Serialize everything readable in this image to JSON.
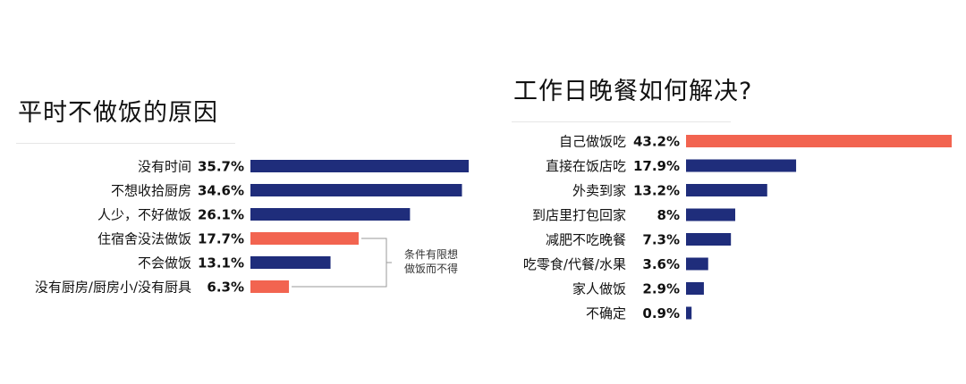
{
  "chart_data": [
    {
      "type": "bar",
      "orientation": "horizontal",
      "title": "平时不做饭的原因",
      "categories": [
        "没有时间",
        "不想收拾厨房",
        "人少，不好做饭",
        "住宿舍没法做饭",
        "不会做饭",
        "没有厨房/厨房小/没有厨具"
      ],
      "values": [
        35.7,
        34.6,
        26.1,
        17.7,
        13.1,
        6.3
      ],
      "value_labels": [
        "35.7%",
        "34.6%",
        "26.1%",
        "17.7%",
        "13.1%",
        "6.3%"
      ],
      "highlight_indices": [
        3,
        5
      ],
      "annotation": {
        "lines": [
          "条件有限想",
          "做饭而不得"
        ],
        "targets": [
          3,
          5
        ]
      },
      "colors": {
        "default": "#1f2d7b",
        "highlight": "#f26450"
      }
    },
    {
      "type": "bar",
      "orientation": "horizontal",
      "title": "工作日晚餐如何解决?",
      "categories": [
        "自己做饭吃",
        "直接在饭店吃",
        "外卖到家",
        "到店里打包回家",
        "减肥不吃晚餐",
        "吃零食/代餐/水果",
        "家人做饭",
        "不确定"
      ],
      "values": [
        43.2,
        17.9,
        13.2,
        8,
        7.3,
        3.6,
        2.9,
        0.9
      ],
      "value_labels": [
        "43.2%",
        "17.9%",
        "13.2%",
        "8%",
        "7.3%",
        "3.6%",
        "2.9%",
        "0.9%"
      ],
      "highlight_indices": [
        0
      ],
      "colors": {
        "default": "#1f2d7b",
        "highlight": "#f26450"
      }
    }
  ]
}
